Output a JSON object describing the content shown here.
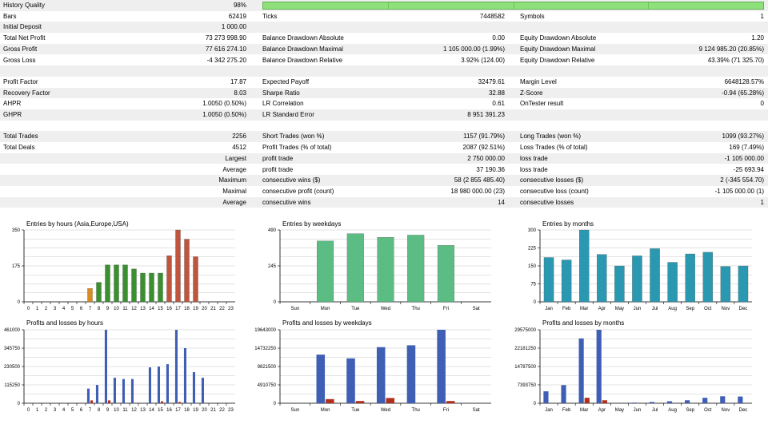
{
  "stats": {
    "history_quality": {
      "label": "History Quality",
      "value": "98%",
      "fill": 1.0
    },
    "rows": [
      {
        "cells": [
          "Bars",
          "62419",
          "Ticks",
          "7448582",
          "Symbols",
          "1"
        ],
        "alt": false
      },
      {
        "cells": [
          "Initial Deposit",
          "1 000.00",
          "",
          "",
          "",
          ""
        ],
        "alt": true
      },
      {
        "cells": [
          "Total Net Profit",
          "73 273 998.90",
          "Balance Drawdown Absolute",
          "0.00",
          "Equity Drawdown Absolute",
          "1.20"
        ],
        "alt": false
      },
      {
        "cells": [
          "Gross Profit",
          "77 616 274.10",
          "Balance Drawdown Maximal",
          "1 105 000.00 (1.99%)",
          "Equity Drawdown Maximal",
          "9 124 985.20 (20.85%)"
        ],
        "alt": true
      },
      {
        "cells": [
          "Gross Loss",
          "-4 342 275.20",
          "Balance Drawdown Relative",
          "3.92% (124.00)",
          "Equity Drawdown Relative",
          "43.39% (71 325.70)"
        ],
        "alt": false
      },
      {
        "cells": [
          "",
          "",
          "",
          "",
          "",
          ""
        ],
        "alt": true
      },
      {
        "cells": [
          "Profit Factor",
          "17.87",
          "Expected Payoff",
          "32479.61",
          "Margin Level",
          "6648128.57%"
        ],
        "alt": false
      },
      {
        "cells": [
          "Recovery Factor",
          "8.03",
          "Sharpe Ratio",
          "32.88",
          "Z-Score",
          "-0.94 (65.28%)"
        ],
        "alt": true
      },
      {
        "cells": [
          "AHPR",
          "1.0050 (0.50%)",
          "LR Correlation",
          "0.61",
          "OnTester result",
          "0"
        ],
        "alt": false
      },
      {
        "cells": [
          "GHPR",
          "1.0050 (0.50%)",
          "LR Standard Error",
          "8 951 391.23",
          "",
          ""
        ],
        "alt": true
      },
      {
        "cells": [
          "",
          "",
          "",
          "",
          "",
          ""
        ],
        "alt": false
      },
      {
        "cells": [
          "Total Trades",
          "2256",
          "Short Trades (won %)",
          "1157 (91.79%)",
          "Long Trades (won %)",
          "1099 (93.27%)"
        ],
        "alt": true
      },
      {
        "cells": [
          "Total Deals",
          "4512",
          "Profit Trades (% of total)",
          "2087 (92.51%)",
          "Loss Trades (% of total)",
          "169 (7.49%)"
        ],
        "alt": false
      },
      {
        "cells": [
          "",
          "Largest",
          "profit trade",
          "2 750 000.00",
          "loss trade",
          "-1 105 000.00"
        ],
        "alt": true,
        "right": true
      },
      {
        "cells": [
          "",
          "Average",
          "profit trade",
          "37 190.36",
          "loss trade",
          "-25 693.94"
        ],
        "alt": false,
        "right": true
      },
      {
        "cells": [
          "",
          "Maximum",
          "consecutive wins ($)",
          "58 (2 855 485.40)",
          "consecutive losses ($)",
          "2 (-345 554.70)"
        ],
        "alt": true,
        "right": true
      },
      {
        "cells": [
          "",
          "Maximal",
          "consecutive profit (count)",
          "18 980 000.00 (23)",
          "consecutive loss (count)",
          "-1 105 000.00 (1)"
        ],
        "alt": false,
        "right": true
      },
      {
        "cells": [
          "",
          "Average",
          "consecutive wins",
          "14",
          "consecutive losses",
          "1"
        ],
        "alt": true,
        "right": true
      }
    ]
  },
  "colors": {
    "grid": "#c8c8c8",
    "axis": "#000000"
  },
  "chart_data": [
    {
      "type": "bar",
      "title": "Entries by hours (Asia,Europe,USA)",
      "categories": [
        "0",
        "1",
        "2",
        "3",
        "4",
        "5",
        "6",
        "7",
        "8",
        "9",
        "10",
        "11",
        "12",
        "13",
        "14",
        "15",
        "16",
        "17",
        "18",
        "19",
        "20",
        "21",
        "22",
        "23"
      ],
      "values": [
        0,
        0,
        0,
        0,
        0,
        0,
        0,
        65,
        95,
        180,
        180,
        180,
        160,
        140,
        140,
        140,
        225,
        350,
        305,
        220,
        0,
        0,
        0,
        0
      ],
      "bar_colors": [
        "#3a8f2e",
        "#3a8f2e",
        "#3a8f2e",
        "#3a8f2e",
        "#3a8f2e",
        "#3a8f2e",
        "#3a8f2e",
        "#d98c1f",
        "#3a8f2e",
        "#3a8f2e",
        "#3a8f2e",
        "#3a8f2e",
        "#3a8f2e",
        "#3a8f2e",
        "#3a8f2e",
        "#3a8f2e",
        "#c0553d",
        "#c0553d",
        "#c0553d",
        "#c0553d",
        "#c0553d",
        "#c0553d",
        "#c0553d",
        "#c0553d"
      ],
      "yticks": [
        "0",
        "175",
        "350"
      ],
      "ylim": [
        0,
        350
      ]
    },
    {
      "type": "bar",
      "title": "Entries by weekdays",
      "categories": [
        "Sun",
        "Mon",
        "Tue",
        "Wed",
        "Thu",
        "Fri",
        "Sat"
      ],
      "values": [
        0,
        415,
        465,
        440,
        455,
        385,
        0
      ],
      "bar_colors": [
        "#5cbd84",
        "#5cbd84",
        "#5cbd84",
        "#5cbd84",
        "#5cbd84",
        "#5cbd84",
        "#5cbd84"
      ],
      "yticks": [
        "0",
        "245",
        "490"
      ],
      "ylim": [
        0,
        490
      ]
    },
    {
      "type": "bar",
      "title": "Entries by months",
      "categories": [
        "Jan",
        "Feb",
        "Mar",
        "Apr",
        "May",
        "Jun",
        "Jul",
        "Aug",
        "Sep",
        "Oct",
        "Nov",
        "Dec"
      ],
      "values": [
        185,
        175,
        300,
        198,
        150,
        192,
        222,
        165,
        200,
        207,
        148,
        150
      ],
      "bar_colors": [
        "#2a98b0",
        "#2a98b0",
        "#2a98b0",
        "#2a98b0",
        "#2a98b0",
        "#2a98b0",
        "#2a98b0",
        "#2a98b0",
        "#2a98b0",
        "#2a98b0",
        "#2a98b0",
        "#2a98b0"
      ],
      "yticks": [
        "0",
        "75",
        "150",
        "225",
        "300"
      ],
      "ylim": [
        0,
        300
      ]
    },
    {
      "type": "bar",
      "title": "Profits and losses by hours",
      "categories": [
        "0",
        "1",
        "2",
        "3",
        "4",
        "5",
        "6",
        "7",
        "8",
        "9",
        "10",
        "11",
        "12",
        "13",
        "14",
        "15",
        "16",
        "17",
        "18",
        "19",
        "20",
        "21",
        "22",
        "23"
      ],
      "series": [
        {
          "values": [
            0,
            0,
            0,
            0,
            0,
            0,
            0,
            92000,
            115000,
            461000,
            160000,
            152000,
            152000,
            0,
            225000,
            230000,
            245000,
            461000,
            345750,
            195000,
            160000,
            0,
            0,
            0
          ],
          "color": "#3f5fb5"
        },
        {
          "values": [
            0,
            0,
            0,
            0,
            0,
            0,
            0,
            18000,
            0,
            18000,
            0,
            0,
            0,
            0,
            0,
            12000,
            0,
            8000,
            0,
            0,
            0,
            0,
            0,
            0
          ],
          "color": "#b0301e"
        }
      ],
      "yticks": [
        "0",
        "115250",
        "230500",
        "345750",
        "461000"
      ],
      "ylim": [
        0,
        461000
      ]
    },
    {
      "type": "bar",
      "title": "Profits and losses by weekdays",
      "categories": [
        "Sun",
        "Mon",
        "Tue",
        "Wed",
        "Thu",
        "Fri",
        "Sat"
      ],
      "series": [
        {
          "values": [
            0,
            13000000,
            12000000,
            15000000,
            15500000,
            19643000,
            0
          ],
          "color": "#3f5fb5"
        },
        {
          "values": [
            0,
            1100000,
            600000,
            1400000,
            0,
            600000,
            0
          ],
          "color": "#b0301e"
        }
      ],
      "yticks": [
        "0",
        "4910750",
        "9821500",
        "14732250",
        "19643000"
      ],
      "ylim": [
        0,
        19643000
      ]
    },
    {
      "type": "bar",
      "title": "Profits and losses by months",
      "categories": [
        "Jan",
        "Feb",
        "Mar",
        "Apr",
        "May",
        "Jun",
        "Jul",
        "Aug",
        "Sep",
        "Oct",
        "Nov",
        "Dec"
      ],
      "series": [
        {
          "values": [
            4800000,
            7300000,
            26100000,
            29575000,
            0,
            250000,
            500000,
            800000,
            1200000,
            2200000,
            2800000,
            2700000
          ],
          "color": "#3f5fb5"
        },
        {
          "values": [
            0,
            0,
            2200000,
            1200000,
            0,
            0,
            0,
            0,
            0,
            0,
            0,
            0
          ],
          "color": "#b0301e"
        }
      ],
      "yticks": [
        "0",
        "7393750",
        "14787500",
        "22181250",
        "29575000"
      ],
      "ylim": [
        0,
        29575000
      ]
    }
  ]
}
